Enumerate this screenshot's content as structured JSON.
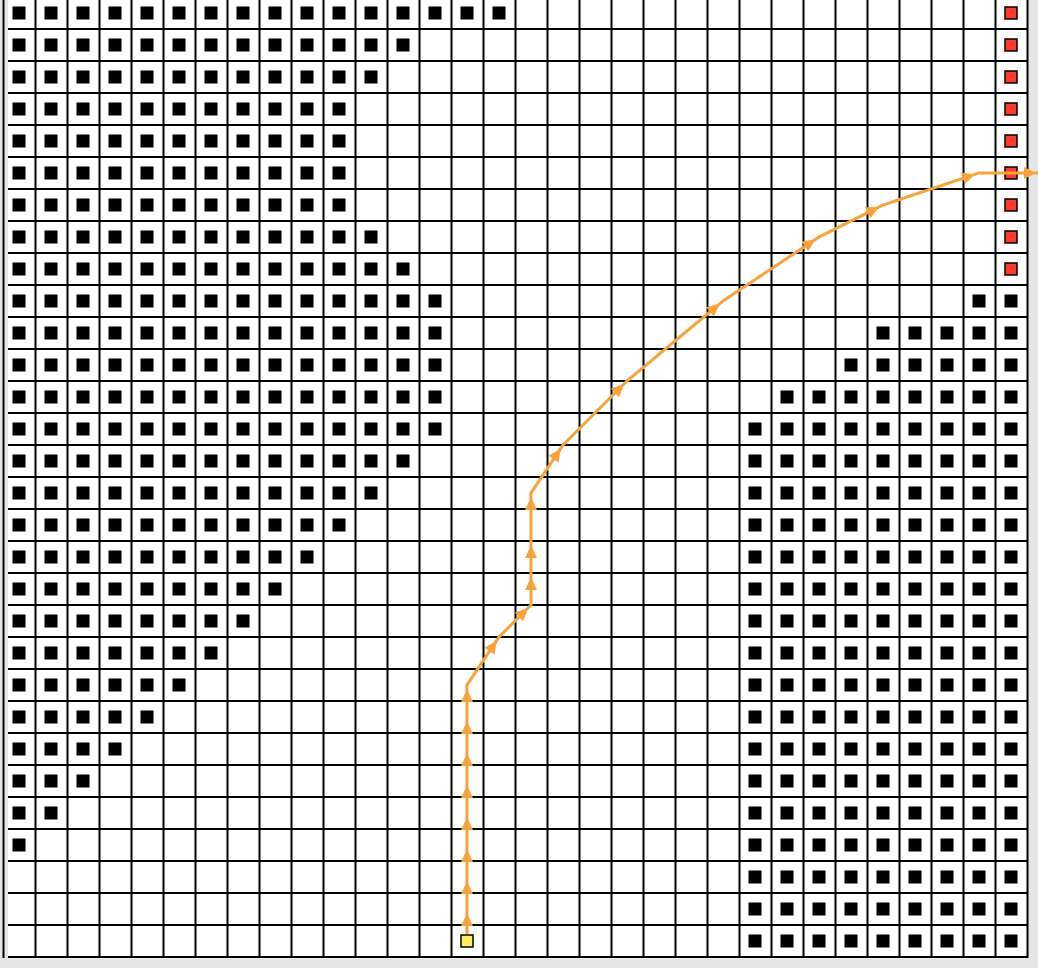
{
  "grid": {
    "cols": 32,
    "rows": 30,
    "obstacle_runs": [
      [
        [
          0,
          15
        ]
      ],
      [
        [
          0,
          12
        ]
      ],
      [
        [
          0,
          11
        ]
      ],
      [
        [
          0,
          10
        ]
      ],
      [
        [
          0,
          10
        ]
      ],
      [
        [
          0,
          10
        ]
      ],
      [
        [
          0,
          10
        ]
      ],
      [
        [
          0,
          11
        ]
      ],
      [
        [
          0,
          12
        ]
      ],
      [
        [
          0,
          13
        ],
        [
          30,
          31
        ]
      ],
      [
        [
          0,
          13
        ],
        [
          27,
          31
        ]
      ],
      [
        [
          0,
          13
        ],
        [
          26,
          31
        ]
      ],
      [
        [
          0,
          13
        ],
        [
          24,
          31
        ]
      ],
      [
        [
          0,
          13
        ],
        [
          23,
          31
        ]
      ],
      [
        [
          0,
          12
        ],
        [
          23,
          31
        ]
      ],
      [
        [
          0,
          11
        ],
        [
          23,
          31
        ]
      ],
      [
        [
          0,
          10
        ],
        [
          23,
          31
        ]
      ],
      [
        [
          0,
          9
        ],
        [
          23,
          31
        ]
      ],
      [
        [
          0,
          8
        ],
        [
          23,
          31
        ]
      ],
      [
        [
          0,
          7
        ],
        [
          23,
          31
        ]
      ],
      [
        [
          0,
          6
        ],
        [
          23,
          31
        ]
      ],
      [
        [
          0,
          5
        ],
        [
          23,
          31
        ]
      ],
      [
        [
          0,
          4
        ],
        [
          23,
          31
        ]
      ],
      [
        [
          0,
          3
        ],
        [
          23,
          31
        ]
      ],
      [
        [
          0,
          2
        ],
        [
          23,
          31
        ]
      ],
      [
        [
          0,
          1
        ],
        [
          23,
          31
        ]
      ],
      [
        [
          0,
          0
        ],
        [
          23,
          31
        ]
      ],
      [
        [
          23,
          31
        ]
      ],
      [
        [
          23,
          31
        ]
      ],
      [
        [
          23,
          31
        ]
      ]
    ],
    "goal_cells": [
      [
        31,
        0
      ],
      [
        31,
        1
      ],
      [
        31,
        2
      ],
      [
        31,
        3
      ],
      [
        31,
        4
      ],
      [
        31,
        5
      ],
      [
        31,
        6
      ],
      [
        31,
        7
      ],
      [
        31,
        8
      ]
    ],
    "start_cell": [
      14,
      29
    ]
  },
  "path": {
    "points": [
      [
        14,
        29
      ],
      [
        14,
        28
      ],
      [
        14,
        27
      ],
      [
        14,
        26
      ],
      [
        14,
        25
      ],
      [
        14,
        24
      ],
      [
        14,
        23
      ],
      [
        14,
        22
      ],
      [
        14,
        21
      ],
      [
        15,
        19.5
      ],
      [
        16,
        18.5
      ],
      [
        16,
        17.5
      ],
      [
        16,
        16.5
      ],
      [
        16,
        15
      ],
      [
        17,
        13.5
      ],
      [
        19,
        11.5
      ],
      [
        22,
        9
      ],
      [
        25,
        7
      ],
      [
        27,
        6
      ],
      [
        30,
        5
      ],
      [
        32,
        5
      ]
    ],
    "arrow_segments": [
      0,
      1,
      2,
      3,
      4,
      5,
      6,
      7,
      8,
      9,
      10,
      11,
      12,
      13,
      14,
      15,
      16,
      17,
      18
    ]
  },
  "colors": {
    "background": "#e6e6e6",
    "board": "#ffffff",
    "grid_line": "#000000",
    "obstacle": "#000000",
    "goal_fill": "#ff3b30",
    "start_fill": "#ffef5a",
    "path": "#f5a33a"
  }
}
